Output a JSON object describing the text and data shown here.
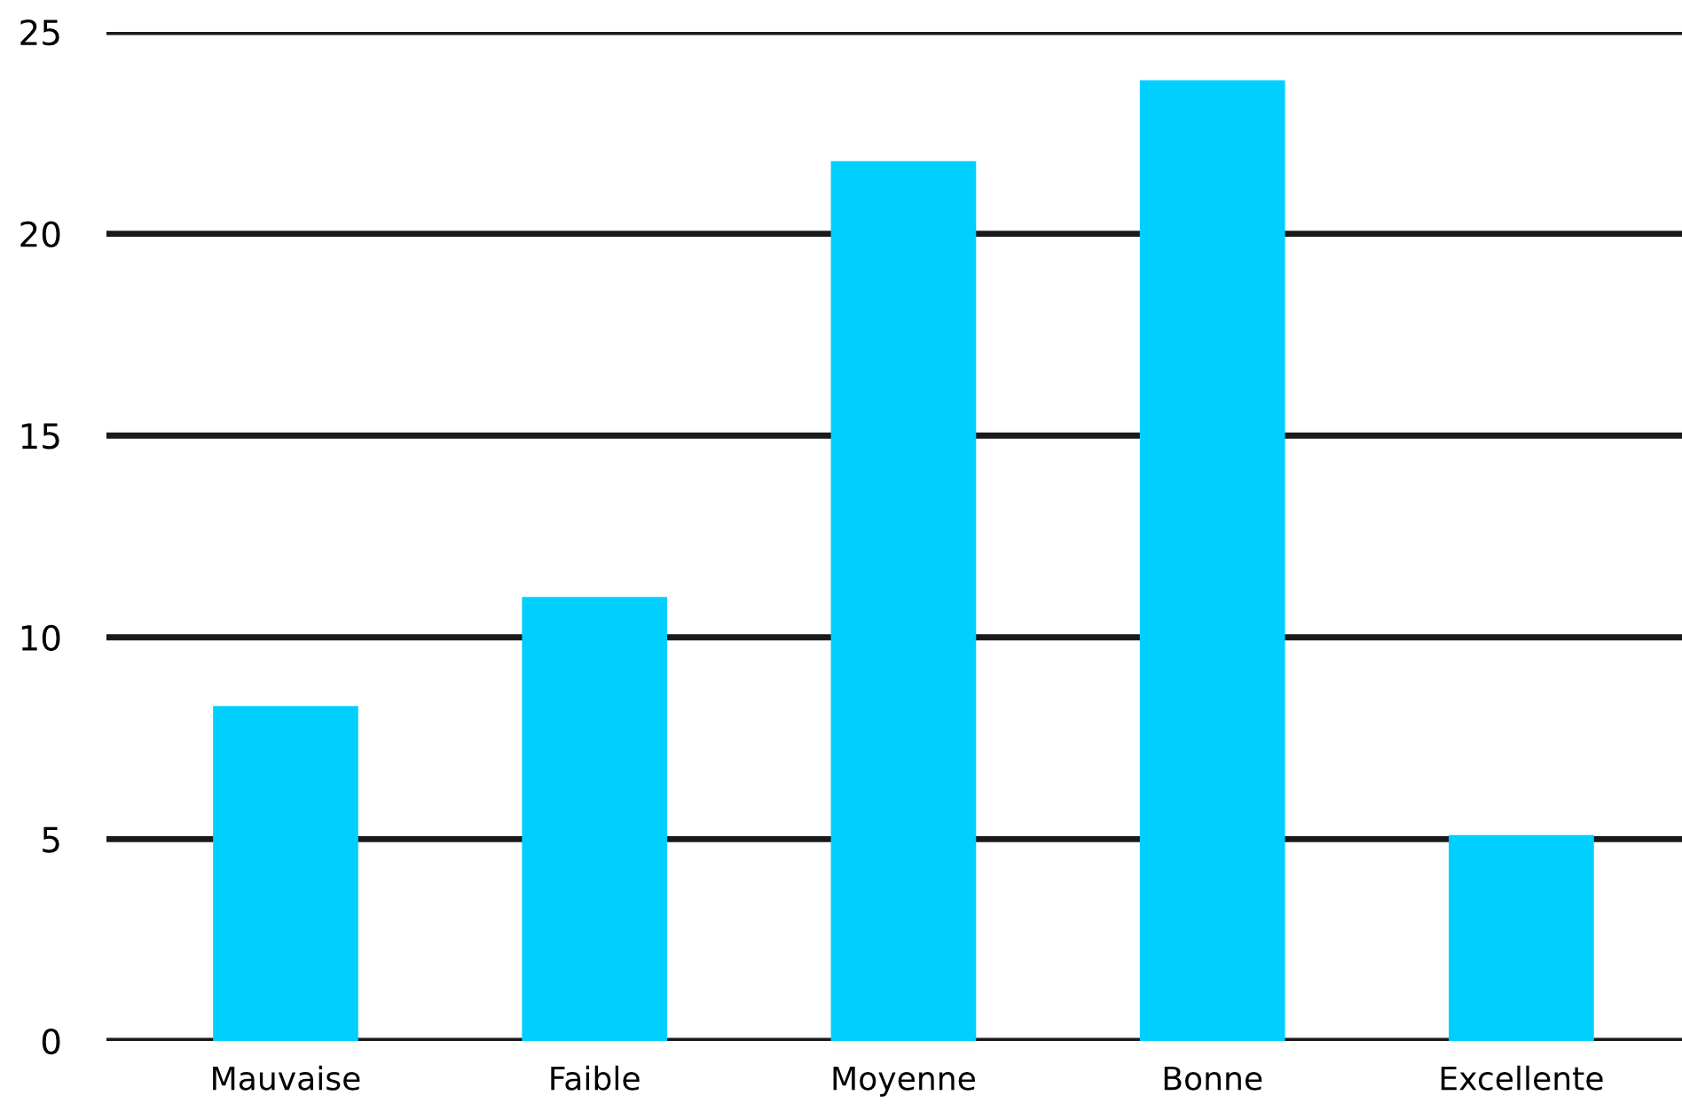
{
  "chart_data": {
    "type": "bar",
    "categories": [
      "Mauvaise",
      "Faible",
      "Moyenne",
      "Bonne",
      "Excellente"
    ],
    "values": [
      8.3,
      11,
      21.8,
      23.8,
      5.1
    ],
    "color": "#00cfff",
    "ylim": [
      0,
      25
    ],
    "yticks": [
      0,
      5,
      10,
      15,
      20,
      25
    ],
    "grid": "y"
  }
}
